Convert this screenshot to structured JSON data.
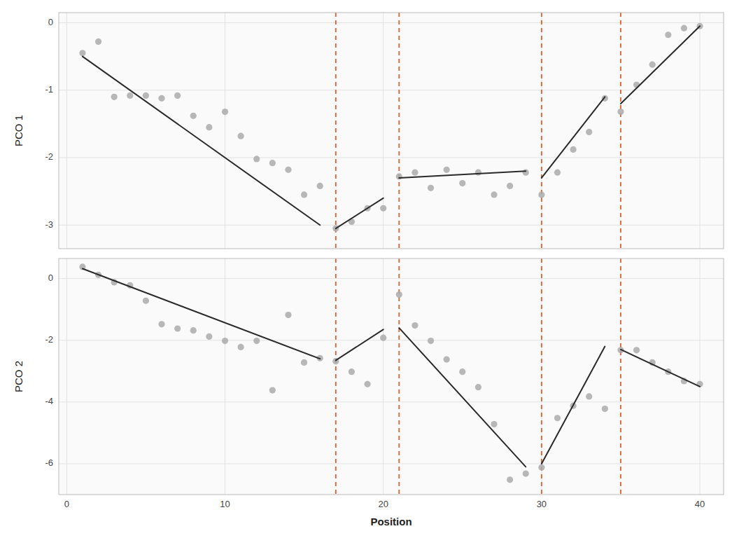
{
  "chart_data": [
    {
      "type": "scatter",
      "y_label": "PCO 1",
      "xlim": [
        -0.5,
        41.5
      ],
      "xticks": [
        0,
        10,
        20,
        30,
        40
      ],
      "ylim": [
        -3.35,
        0.15
      ],
      "yticks": [
        0,
        -1,
        -2,
        -3
      ],
      "grid": true,
      "tick_labels": "y",
      "series": [
        {
          "type": "scatter",
          "color": "#aaaaaa",
          "marker": "circle",
          "x": [
            1,
            2,
            3,
            4,
            5,
            6,
            7,
            8,
            9,
            10,
            11,
            12,
            13,
            14,
            15,
            16,
            17,
            18,
            19,
            20,
            21,
            22,
            23,
            24,
            25,
            26,
            27,
            28,
            29,
            30,
            31,
            32,
            33,
            34,
            35,
            36,
            37,
            38,
            39,
            40
          ],
          "values": [
            -0.45,
            -0.28,
            -1.1,
            -1.08,
            -1.08,
            -1.12,
            -1.08,
            -1.38,
            -1.55,
            -1.32,
            -1.68,
            -2.02,
            -2.08,
            -2.18,
            -2.55,
            -2.42,
            -3.05,
            -2.95,
            -2.75,
            -2.75,
            -2.28,
            -2.22,
            -2.45,
            -2.18,
            -2.38,
            -2.22,
            -2.55,
            -2.42,
            -2.22,
            -2.55,
            -2.22,
            -1.88,
            -1.62,
            -1.12,
            -1.32,
            -0.92,
            -0.62,
            -0.18,
            -0.08,
            -0.05
          ]
        },
        {
          "type": "line",
          "color": "#2a2a2a",
          "line_style": "solid",
          "x": [
            1,
            16
          ],
          "values": [
            -0.5,
            -3.0
          ]
        },
        {
          "type": "line",
          "color": "#2a2a2a",
          "line_style": "solid",
          "x": [
            17,
            20
          ],
          "values": [
            -3.05,
            -2.6
          ]
        },
        {
          "type": "line",
          "color": "#2a2a2a",
          "line_style": "solid",
          "x": [
            21,
            29
          ],
          "values": [
            -2.3,
            -2.2
          ]
        },
        {
          "type": "line",
          "color": "#2a2a2a",
          "line_style": "solid",
          "x": [
            30,
            34
          ],
          "values": [
            -2.3,
            -1.1
          ]
        },
        {
          "type": "line",
          "color": "#2a2a2a",
          "line_style": "solid",
          "x": [
            35,
            40
          ],
          "values": [
            -1.2,
            -0.05
          ]
        },
        {
          "type": "vline",
          "color": "#e06030",
          "line_style": "dashed",
          "x": [
            17,
            21,
            30,
            35
          ]
        }
      ]
    },
    {
      "type": "scatter",
      "y_label": "PCO 2",
      "x_label": "Position",
      "xlim": [
        -0.5,
        41.5
      ],
      "xticks": [
        0,
        10,
        20,
        30,
        40
      ],
      "ylim": [
        -7.0,
        0.65
      ],
      "yticks": [
        0,
        -2,
        -4,
        -6
      ],
      "grid": true,
      "series": [
        {
          "type": "scatter",
          "color": "#aaaaaa",
          "marker": "circle",
          "x": [
            1,
            2,
            3,
            4,
            5,
            6,
            7,
            8,
            9,
            10,
            11,
            12,
            13,
            14,
            15,
            16,
            17,
            18,
            19,
            20,
            21,
            22,
            23,
            24,
            25,
            26,
            27,
            28,
            29,
            30,
            31,
            32,
            33,
            34,
            35,
            36,
            37,
            38,
            39,
            40
          ],
          "values": [
            0.38,
            0.12,
            -0.12,
            -0.22,
            -0.72,
            -1.48,
            -1.62,
            -1.68,
            -1.88,
            -2.02,
            -2.22,
            -2.02,
            -3.62,
            -1.18,
            -2.72,
            -2.58,
            -2.68,
            -3.02,
            -3.42,
            -1.92,
            -0.52,
            -1.52,
            -2.02,
            -2.62,
            -3.02,
            -3.52,
            -4.72,
            -6.52,
            -6.32,
            -6.12,
            -4.52,
            -4.12,
            -3.82,
            -4.22,
            -2.32,
            -2.32,
            -2.72,
            -3.02,
            -3.32,
            -3.42
          ]
        },
        {
          "type": "line",
          "color": "#2a2a2a",
          "line_style": "solid",
          "x": [
            1,
            16
          ],
          "values": [
            0.32,
            -2.6
          ]
        },
        {
          "type": "line",
          "color": "#2a2a2a",
          "line_style": "solid",
          "x": [
            17,
            20
          ],
          "values": [
            -2.65,
            -1.65
          ]
        },
        {
          "type": "line",
          "color": "#2a2a2a",
          "line_style": "solid",
          "x": [
            21,
            29
          ],
          "values": [
            -1.6,
            -6.1
          ]
        },
        {
          "type": "line",
          "color": "#2a2a2a",
          "line_style": "solid",
          "x": [
            30,
            34
          ],
          "values": [
            -6.0,
            -2.2
          ]
        },
        {
          "type": "line",
          "color": "#2a2a2a",
          "line_style": "solid",
          "x": [
            35,
            40
          ],
          "values": [
            -2.3,
            -3.5
          ]
        },
        {
          "type": "vline",
          "color": "#e06030",
          "line_style": "dashed",
          "x": [
            17,
            21,
            30,
            35
          ]
        }
      ]
    }
  ]
}
